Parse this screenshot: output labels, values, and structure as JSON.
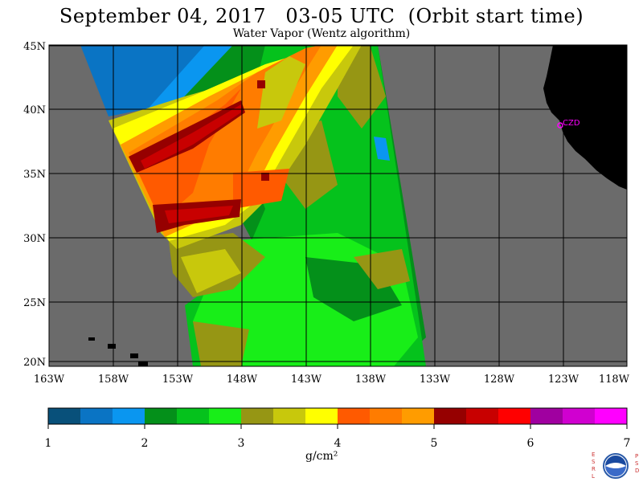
{
  "title": "September 04, 2017   03-05 UTC  (Orbit start time)",
  "subtitle": "Water Vapor (Wentz algorithm)",
  "map": {
    "lat_labels": [
      "45N",
      "40N",
      "35N",
      "30N",
      "25N",
      "20N"
    ],
    "lon_labels": [
      "163W",
      "158W",
      "153W",
      "148W",
      "143W",
      "138W",
      "133W",
      "128W",
      "123W",
      "118W"
    ],
    "station_label": "CZD",
    "colors": {
      "ocean_nodata": "#6b6b6b",
      "land": "#000000",
      "station": "#ff00ff",
      "grid": "#000000"
    }
  },
  "colorbar": {
    "unit_label": "g/cm²",
    "tick_labels": [
      "1",
      "2",
      "3",
      "4",
      "5",
      "6",
      "7"
    ],
    "colors": [
      "#08507a",
      "#0a74c4",
      "#0a96f0",
      "#04901a",
      "#05c21c",
      "#18ee18",
      "#969614",
      "#c8c80c",
      "#ffff00",
      "#ff5a00",
      "#ff7c00",
      "#ff9c00",
      "#960000",
      "#c80000",
      "#ff0000",
      "#a000a0",
      "#d000d0",
      "#ff00ff"
    ]
  },
  "logo": {
    "name": "NOAA",
    "left_letters": [
      "E",
      "S",
      "R",
      "L"
    ],
    "right_letters": [
      "P",
      "S",
      "D"
    ]
  }
}
